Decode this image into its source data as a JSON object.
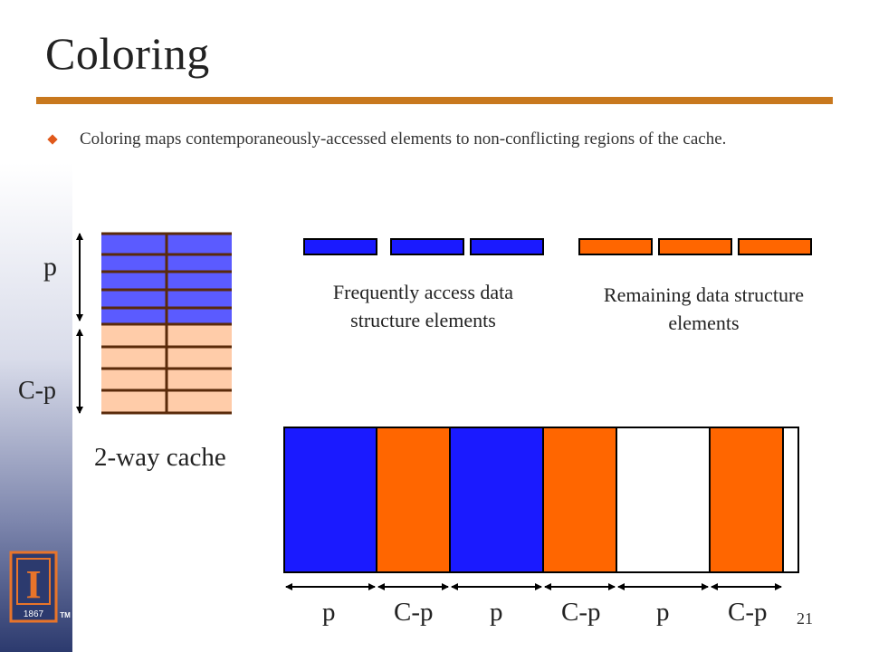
{
  "slide": {
    "title": "Coloring",
    "bullet": "Coloring maps contemporaneously-accessed elements to non-conflicting regions of the cache.",
    "page_number": "21"
  },
  "cache_diagram": {
    "label_p": "p",
    "label_cp": "C-p",
    "caption": "2-way cache"
  },
  "legend": {
    "frequent_caption": "Frequently access data structure elements",
    "remaining_caption": "Remaining data structure elements"
  },
  "mapping": {
    "labels": [
      "p",
      "C-p",
      "p",
      "C-p",
      "p",
      "C-p"
    ]
  },
  "logo": {
    "mark": "I",
    "year": "1867",
    "tm": "TM"
  },
  "colors": {
    "frequent": "#1a1aff",
    "remaining": "#ff6600",
    "cache_frequent": "#5b5bff",
    "cache_remaining": "#ffcca9",
    "accent_rule": "#c8781e",
    "logo_blue": "#2c3a6e",
    "logo_orange": "#e8742a"
  }
}
